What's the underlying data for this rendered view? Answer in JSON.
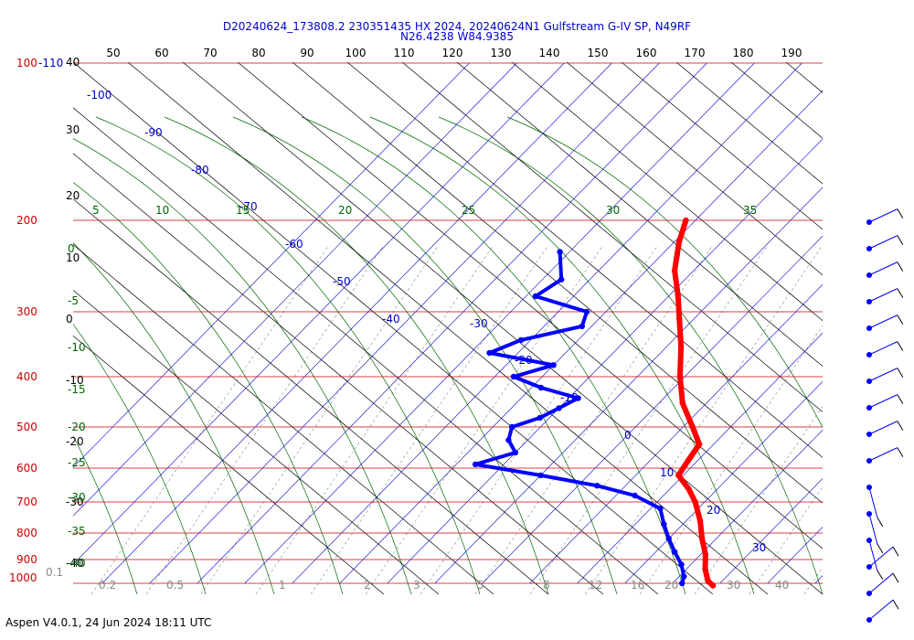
{
  "chart_data": {
    "type": "line",
    "title_line1": "D20240624_173808.2 230351435 HX 2024, 20240624N1 Gulfstream G-IV SP, N49RF",
    "title_line2": "N26.4238 W84.9385",
    "footer": "Aspen V4.0.1, 24 Jun 2024  18:11 UTC",
    "pressure_levels": [
      100,
      200,
      300,
      400,
      500,
      600,
      700,
      800,
      900,
      1000
    ],
    "pressure_top_label": "100",
    "pressure_top_label_suffix": "-110",
    "top_axis_ticks": [
      "50",
      "60",
      "70",
      "80",
      "90",
      "100",
      "110",
      "120",
      "130",
      "140",
      "150",
      "160",
      "170",
      "180",
      "190"
    ],
    "left_axis_labels": [
      "40",
      "30",
      "20",
      "10",
      "0",
      "-10",
      "-20",
      "-30",
      "-40"
    ],
    "isotherm_labels": [
      "-100",
      "-90",
      "-80",
      "-70",
      "-60",
      "-50",
      "-40",
      "-30",
      "-20",
      "-10",
      "0",
      "10",
      "20",
      "30"
    ],
    "theta_labels": [
      "5",
      "10",
      "15",
      "20",
      "25",
      "30",
      "35"
    ],
    "thetae_labels": [
      "0",
      "-5",
      "-10",
      "-15",
      "-20",
      "-25",
      "-30",
      "-35",
      "-40"
    ],
    "mixing_ratio_labels": [
      "0.1",
      "0.2",
      "0.5",
      "1",
      "2",
      "3",
      "5",
      "8",
      "12",
      "16",
      "20",
      "30",
      "40"
    ],
    "temperature_profile": [
      {
        "p": 200,
        "t": -52
      },
      {
        "p": 220,
        "t": -49
      },
      {
        "p": 250,
        "t": -44
      },
      {
        "p": 280,
        "t": -38
      },
      {
        "p": 310,
        "t": -33
      },
      {
        "p": 350,
        "t": -27
      },
      {
        "p": 400,
        "t": -21
      },
      {
        "p": 450,
        "t": -15
      },
      {
        "p": 500,
        "t": -8
      },
      {
        "p": 540,
        "t": -3
      },
      {
        "p": 580,
        "t": -2
      },
      {
        "p": 620,
        "t": -1
      },
      {
        "p": 660,
        "t": 4
      },
      {
        "p": 700,
        "t": 8
      },
      {
        "p": 760,
        "t": 13
      },
      {
        "p": 820,
        "t": 17
      },
      {
        "p": 880,
        "t": 21
      },
      {
        "p": 940,
        "t": 24
      },
      {
        "p": 990,
        "t": 27
      },
      {
        "p": 1010,
        "t": 29
      }
    ],
    "dewpoint_profile": [
      {
        "p": 230,
        "t": -72
      },
      {
        "p": 260,
        "t": -66
      },
      {
        "p": 280,
        "t": -68
      },
      {
        "p": 300,
        "t": -54
      },
      {
        "p": 320,
        "t": -52
      },
      {
        "p": 340,
        "t": -62
      },
      {
        "p": 360,
        "t": -66
      },
      {
        "p": 380,
        "t": -50
      },
      {
        "p": 400,
        "t": -56
      },
      {
        "p": 420,
        "t": -48
      },
      {
        "p": 440,
        "t": -38
      },
      {
        "p": 460,
        "t": -40
      },
      {
        "p": 480,
        "t": -42
      },
      {
        "p": 500,
        "t": -46
      },
      {
        "p": 530,
        "t": -44
      },
      {
        "p": 560,
        "t": -40
      },
      {
        "p": 590,
        "t": -46
      },
      {
        "p": 620,
        "t": -30
      },
      {
        "p": 650,
        "t": -16
      },
      {
        "p": 680,
        "t": -6
      },
      {
        "p": 720,
        "t": 2
      },
      {
        "p": 770,
        "t": 6
      },
      {
        "p": 820,
        "t": 10
      },
      {
        "p": 870,
        "t": 14
      },
      {
        "p": 920,
        "t": 18
      },
      {
        "p": 970,
        "t": 21
      },
      {
        "p": 1000,
        "t": 22
      }
    ],
    "wind_barb_pressures": [
      200,
      250,
      300,
      350,
      400,
      450,
      500,
      550,
      600,
      650,
      700,
      750,
      800,
      850,
      900,
      950
    ],
    "colors": {
      "temperature": "#ff0000",
      "dewpoint": "#0000ff",
      "isobar": "#cc0000",
      "isotherm": "#0000cc",
      "dry_adiabat": "#000000",
      "moist_adiabat": "#006600",
      "mixing_ratio": "#888888",
      "title": "#0000cc"
    },
    "grid": true,
    "legend": "none"
  }
}
